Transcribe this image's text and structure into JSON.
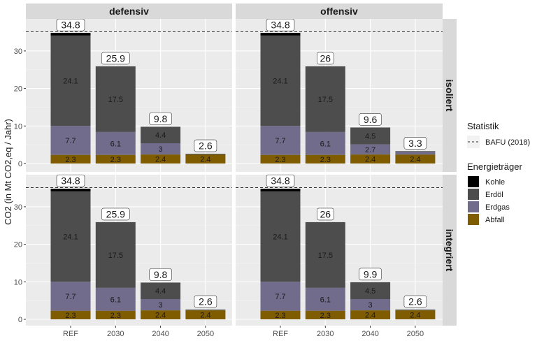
{
  "chart_data": {
    "type": "bar",
    "stacked": true,
    "ylabel": "CO2 (in Mt CO2,eq / Jahr)",
    "xlabel": "",
    "ylim": [
      -1.3,
      37.5
    ],
    "yticks": [
      0,
      10,
      20,
      30
    ],
    "ytick_labels": [
      "0",
      "10",
      "20",
      "30"
    ],
    "categories": [
      "REF",
      "2030",
      "2040",
      "2050"
    ],
    "grid": true,
    "facet_cols": [
      "defensiv",
      "offensiv"
    ],
    "facet_rows": [
      "isoliert",
      "integriert"
    ],
    "reference_line": {
      "name": "BAFU (2018)",
      "value": 35.1,
      "style": "dashed"
    },
    "series_order": [
      "Abfall",
      "Erdgas",
      "Erdöl",
      "Kohle"
    ],
    "colors": {
      "Kohle": "#000000",
      "Erdöl": "#4d4d4d",
      "Erdgas": "#716b8c",
      "Abfall": "#7f5c00"
    },
    "panels": [
      {
        "col": "defensiv",
        "row": "isoliert",
        "totals": [
          "34.8",
          "25.9",
          "9.8",
          "2.6"
        ],
        "series": [
          {
            "name": "Abfall",
            "values": [
              2.3,
              2.3,
              2.4,
              2.4
            ],
            "labels": [
              "2.3",
              "2.3",
              "2.4",
              "2.4"
            ]
          },
          {
            "name": "Erdgas",
            "values": [
              7.7,
              6.1,
              3.0,
              0.0
            ],
            "labels": [
              "7.7",
              "6.1",
              "3",
              ""
            ]
          },
          {
            "name": "Erdöl",
            "values": [
              24.1,
              17.5,
              4.4,
              0.2
            ],
            "labels": [
              "24.1",
              "17.5",
              "4.4",
              ""
            ]
          },
          {
            "name": "Kohle",
            "values": [
              0.7,
              0.0,
              0.0,
              0.0
            ],
            "labels": [
              "",
              "",
              "",
              ""
            ]
          }
        ]
      },
      {
        "col": "offensiv",
        "row": "isoliert",
        "totals": [
          "34.8",
          "26",
          "9.6",
          "3.3"
        ],
        "series": [
          {
            "name": "Abfall",
            "values": [
              2.3,
              2.3,
              2.4,
              2.4
            ],
            "labels": [
              "2.3",
              "2.3",
              "2.4",
              "2.4"
            ]
          },
          {
            "name": "Erdgas",
            "values": [
              7.7,
              6.1,
              2.7,
              0.7
            ],
            "labels": [
              "7.7",
              "6.1",
              "2.7",
              ""
            ]
          },
          {
            "name": "Erdöl",
            "values": [
              24.1,
              17.5,
              4.5,
              0.2
            ],
            "labels": [
              "24.1",
              "17.5",
              "4.5",
              ""
            ]
          },
          {
            "name": "Kohle",
            "values": [
              0.7,
              0.0,
              0.0,
              0.0
            ],
            "labels": [
              "",
              "",
              "",
              ""
            ]
          }
        ]
      },
      {
        "col": "defensiv",
        "row": "integriert",
        "totals": [
          "34.8",
          "25.9",
          "9.8",
          "2.6"
        ],
        "series": [
          {
            "name": "Abfall",
            "values": [
              2.3,
              2.3,
              2.4,
              2.4
            ],
            "labels": [
              "2.3",
              "2.3",
              "2.4",
              "2.4"
            ]
          },
          {
            "name": "Erdgas",
            "values": [
              7.7,
              6.1,
              3.0,
              0.0
            ],
            "labels": [
              "7.7",
              "6.1",
              "3",
              ""
            ]
          },
          {
            "name": "Erdöl",
            "values": [
              24.1,
              17.5,
              4.4,
              0.2
            ],
            "labels": [
              "24.1",
              "17.5",
              "4.4",
              ""
            ]
          },
          {
            "name": "Kohle",
            "values": [
              0.7,
              0.0,
              0.0,
              0.0
            ],
            "labels": [
              "",
              "",
              "",
              ""
            ]
          }
        ]
      },
      {
        "col": "offensiv",
        "row": "integriert",
        "totals": [
          "34.8",
          "26",
          "9.9",
          "2.6"
        ],
        "series": [
          {
            "name": "Abfall",
            "values": [
              2.3,
              2.3,
              2.4,
              2.4
            ],
            "labels": [
              "2.3",
              "2.3",
              "2.4",
              "2.4"
            ]
          },
          {
            "name": "Erdgas",
            "values": [
              7.7,
              6.1,
              3.0,
              0.0
            ],
            "labels": [
              "7.7",
              "6.1",
              "3",
              ""
            ]
          },
          {
            "name": "Erdöl",
            "values": [
              24.1,
              17.5,
              4.5,
              0.2
            ],
            "labels": [
              "24.1",
              "17.5",
              "4.5",
              ""
            ]
          },
          {
            "name": "Kohle",
            "values": [
              0.7,
              0.0,
              0.0,
              0.0
            ],
            "labels": [
              "",
              "",
              "",
              ""
            ]
          }
        ]
      }
    ],
    "legend": {
      "placement": "right",
      "groups": [
        {
          "title": "Statistik",
          "items": [
            {
              "label": "BAFU (2018)",
              "symbol": "dashed-line"
            }
          ]
        },
        {
          "title": "Energieträger",
          "items": [
            {
              "label": "Kohle",
              "symbol": "fill"
            },
            {
              "label": "Erdöl",
              "symbol": "fill"
            },
            {
              "label": "Erdgas",
              "symbol": "fill"
            },
            {
              "label": "Abfall",
              "symbol": "fill"
            }
          ]
        }
      ]
    }
  }
}
